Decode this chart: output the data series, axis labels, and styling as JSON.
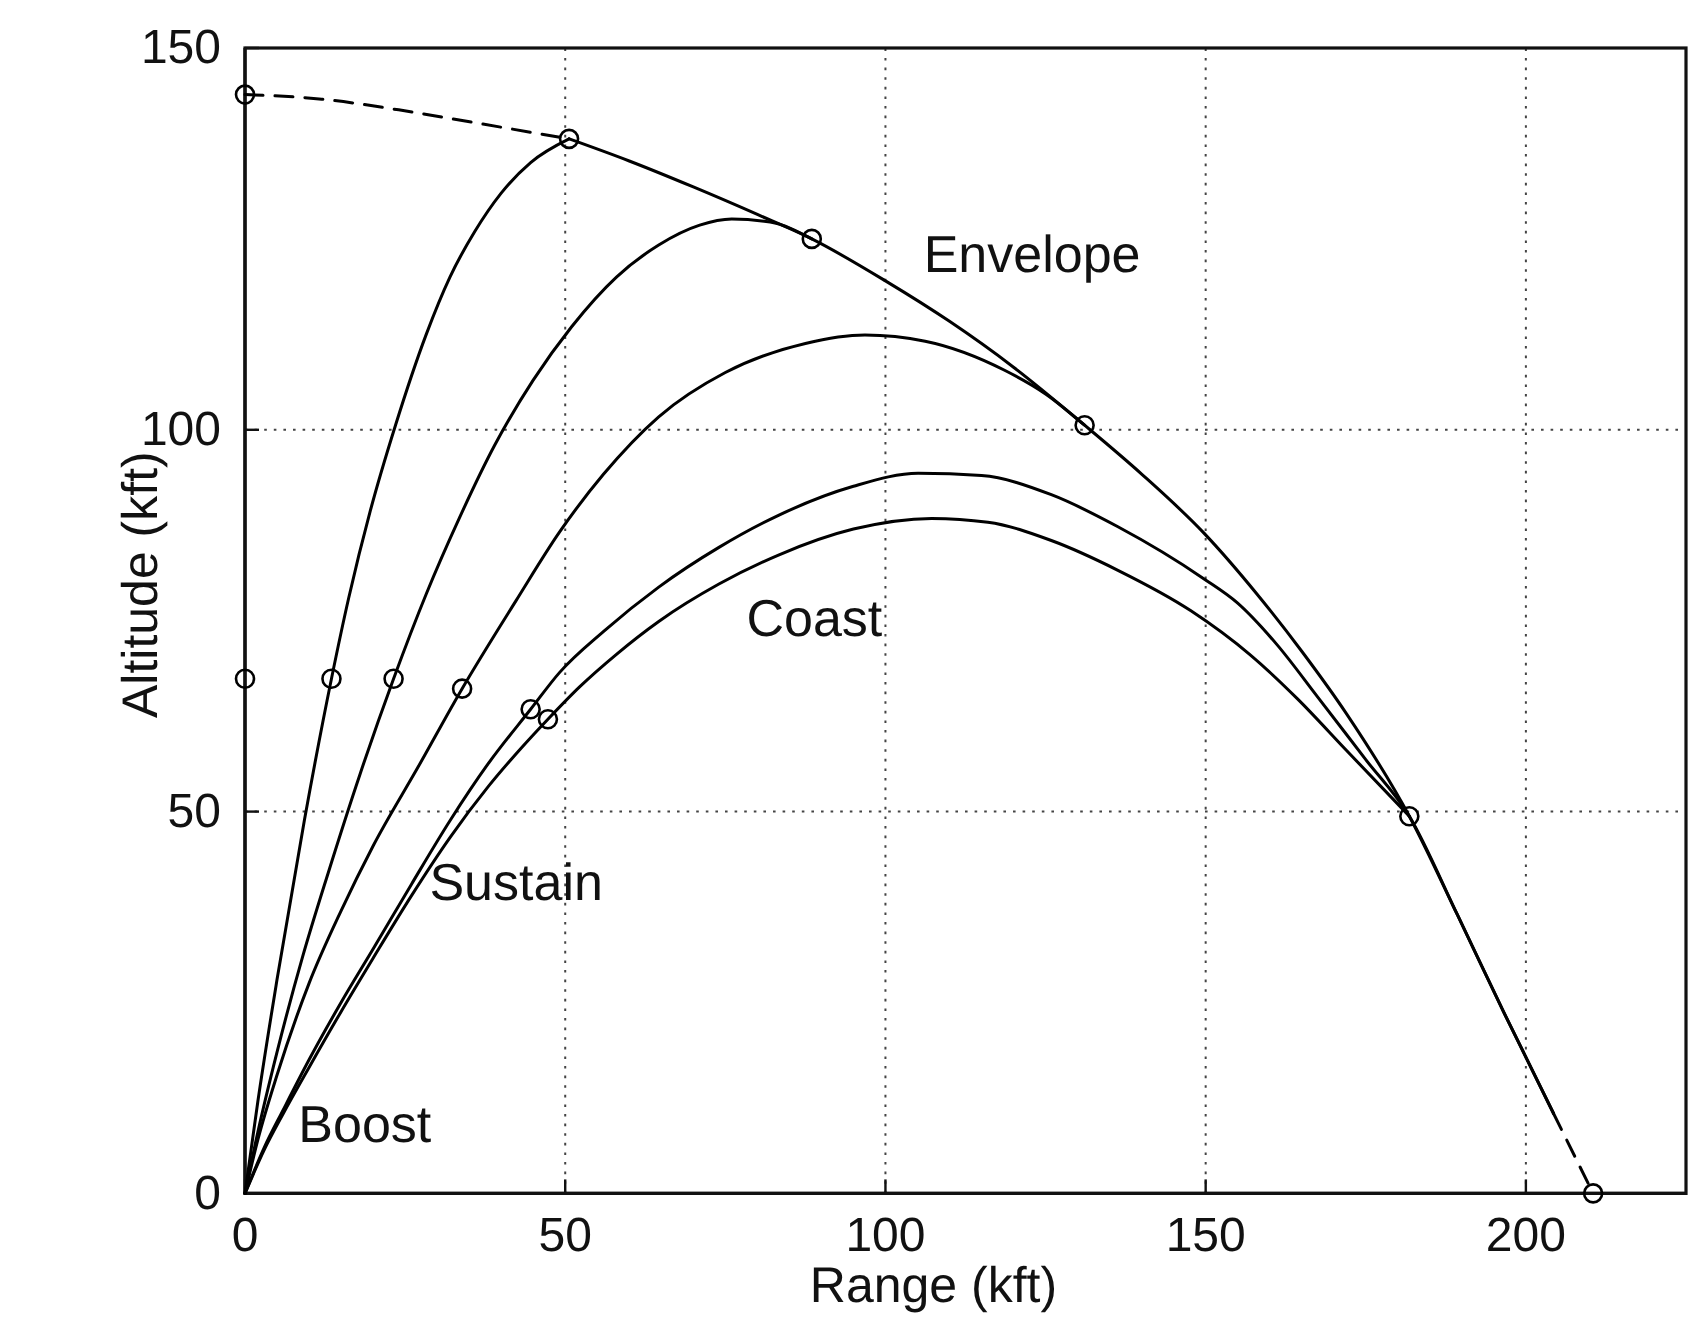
{
  "chart_data": {
    "type": "line",
    "xlabel": "Range (kft)",
    "ylabel": "Altitude (kft)",
    "xlim": [
      0,
      225
    ],
    "ylim": [
      0,
      150
    ],
    "xticks": [
      0,
      50,
      100,
      150,
      200
    ],
    "yticks": [
      0,
      50,
      100,
      150
    ],
    "grid": true,
    "annotations": [
      "Envelope",
      "Coast",
      "Sustain",
      "Boost"
    ],
    "series": [
      {
        "color": "#000000",
        "line_style": "solid",
        "x": [
          0,
          2,
          5,
          9.3,
          13.5,
          16.2,
          19.6,
          23.5,
          28.3,
          32,
          35.9,
          40,
          44.6,
          50.6
        ],
        "values": [
          0,
          12,
          28,
          49,
          67.4,
          78,
          89.5,
          100.6,
          112.5,
          120,
          126,
          131,
          135,
          138.1
        ]
      },
      {
        "color": "#000000",
        "line_style": "solid",
        "x": [
          0,
          2,
          5,
          9,
          13,
          18,
          23.2,
          28.3,
          33.5,
          39,
          45,
          51,
          58,
          64.6,
          71,
          76,
          82,
          88.5
        ],
        "values": [
          0,
          8,
          18.5,
          31,
          42,
          55,
          67.4,
          78.5,
          88.5,
          98,
          106.5,
          113.5,
          120,
          124.2,
          126.8,
          127.6,
          127.2,
          125
        ]
      },
      {
        "color": "#000000",
        "line_style": "solid",
        "x": [
          0,
          2,
          5,
          10,
          15,
          20,
          27,
          33.9,
          42.3,
          49.1,
          56,
          64.6,
          75,
          87.5,
          96.8,
          106.2,
          118.6,
          125,
          131.1
        ],
        "values": [
          0,
          7,
          15.5,
          27.5,
          37,
          45.5,
          55.8,
          66.1,
          77.6,
          86.6,
          94.2,
          101.7,
          107.5,
          111.3,
          112.4,
          111.6,
          107.8,
          104.7,
          100.6
        ]
      },
      {
        "color": "#000000",
        "line_style": "solid",
        "x": [
          0,
          3,
          6,
          10,
          15,
          20,
          26,
          32,
          38,
          44.6,
          49.1,
          56,
          64.6,
          74,
          83.3,
          95,
          105.1,
          115,
          125.9,
          136.3,
          149.7,
          155,
          161,
          167.5,
          175,
          181.8,
          189.3,
          196.5,
          204.3
        ],
        "values": [
          0,
          6,
          11,
          17.5,
          25,
          32,
          40.5,
          48.8,
          56.3,
          63.4,
          68.2,
          73.6,
          79.4,
          84.6,
          88.8,
          92.6,
          94.3,
          94,
          91.5,
          87.3,
          80.5,
          77.3,
          72,
          65,
          56.8,
          49.4,
          36.5,
          23.8,
          10.5
        ]
      },
      {
        "color": "#000000",
        "line_style": "solid",
        "x": [
          0,
          3,
          6,
          10,
          15,
          20,
          26,
          32,
          38,
          43,
          47.3,
          52.2,
          58,
          64.6,
          74,
          83.3,
          95,
          107.2,
          116,
          125.9,
          136.3,
          147.7,
          157,
          164.3,
          172,
          181.8
        ],
        "values": [
          0,
          5.7,
          10.5,
          16.5,
          23.8,
          30.8,
          39,
          46.6,
          53.3,
          58.2,
          62.1,
          66.3,
          70.6,
          74.9,
          79.8,
          83.6,
          87,
          88.4,
          87.9,
          85.5,
          81.6,
          76.3,
          70.5,
          64.8,
          58,
          49.4
        ]
      },
      {
        "color": "#000000",
        "line_style": "dashed",
        "x": [
          0,
          12,
          24,
          36,
          50.6
        ],
        "values": [
          143.9,
          143.3,
          141.9,
          140.2,
          138.1
        ]
      },
      {
        "color": "#000000",
        "line_style": "solid",
        "x": [
          50.6,
          60,
          70,
          80,
          88.5,
          100,
          110,
          120,
          131.1,
          140,
          149.7,
          158,
          165,
          172,
          181.8,
          189.3,
          196.5,
          204.3
        ],
        "values": [
          138.1,
          135.2,
          131.8,
          128.2,
          125,
          119.5,
          114.2,
          108.2,
          100.6,
          94.2,
          86.5,
          78.5,
          71,
          62.8,
          49.4,
          36.5,
          23.8,
          10.5
        ]
      },
      {
        "color": "#000000",
        "line_style": "dashed",
        "x": [
          204.3,
          210.5
        ],
        "values": [
          10.5,
          0
        ]
      },
      {
        "type": "scatter",
        "color": "#000000",
        "marker": "circle",
        "x": [
          0,
          0,
          13.5,
          23.2,
          33.9,
          44.6,
          47.3,
          50.6,
          88.5,
          131.1,
          181.8,
          210.5
        ],
        "values": [
          143.9,
          67.4,
          67.4,
          67.4,
          66.1,
          63.4,
          62.1,
          138.1,
          125,
          100.6,
          49.4,
          0
        ]
      }
    ]
  }
}
